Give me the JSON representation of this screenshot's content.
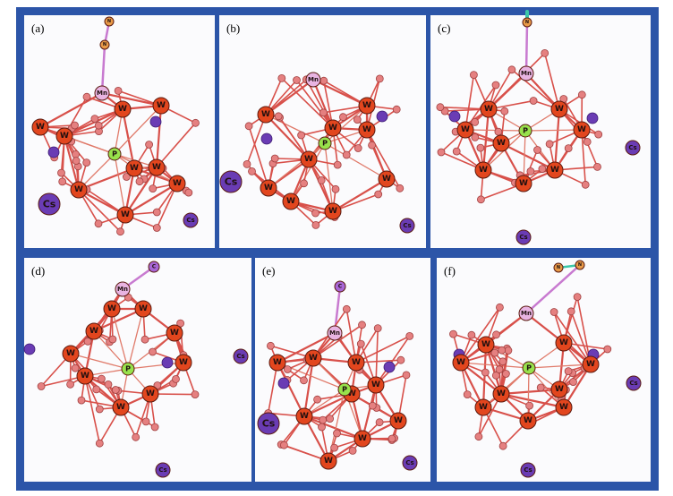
{
  "panels": [
    {
      "label": "(a)",
      "atoms": [
        "N",
        "N",
        "Mn",
        "W",
        "W",
        "W",
        "W",
        "W",
        "W",
        "W",
        "W",
        "W",
        "P",
        "Cs",
        "Cs"
      ]
    },
    {
      "label": "(b)",
      "atoms": [
        "Mn",
        "W",
        "W",
        "W",
        "W",
        "W",
        "W",
        "W",
        "W",
        "W",
        "P",
        "Cs",
        "Cs"
      ]
    },
    {
      "label": "(c)",
      "atoms": [
        "N",
        "Mn",
        "W",
        "W",
        "W",
        "W",
        "W",
        "W",
        "W",
        "W",
        "P",
        "Cs",
        "Cs"
      ]
    },
    {
      "label": "(d)",
      "atoms": [
        "C",
        "Mn",
        "W",
        "W",
        "W",
        "W",
        "W",
        "W",
        "W",
        "W",
        "W",
        "P",
        "Cs",
        "Cs"
      ]
    },
    {
      "label": "(e)",
      "atoms": [
        "C",
        "Mn",
        "W",
        "W",
        "W",
        "W",
        "W",
        "W",
        "W",
        "W",
        "W",
        "P",
        "Cs",
        "Cs"
      ]
    },
    {
      "label": "(f)",
      "atoms": [
        "N",
        "N",
        "Mn",
        "W",
        "W",
        "W",
        "W",
        "W",
        "W",
        "W",
        "W",
        "W",
        "P",
        "Cs",
        "Cs"
      ]
    }
  ]
}
